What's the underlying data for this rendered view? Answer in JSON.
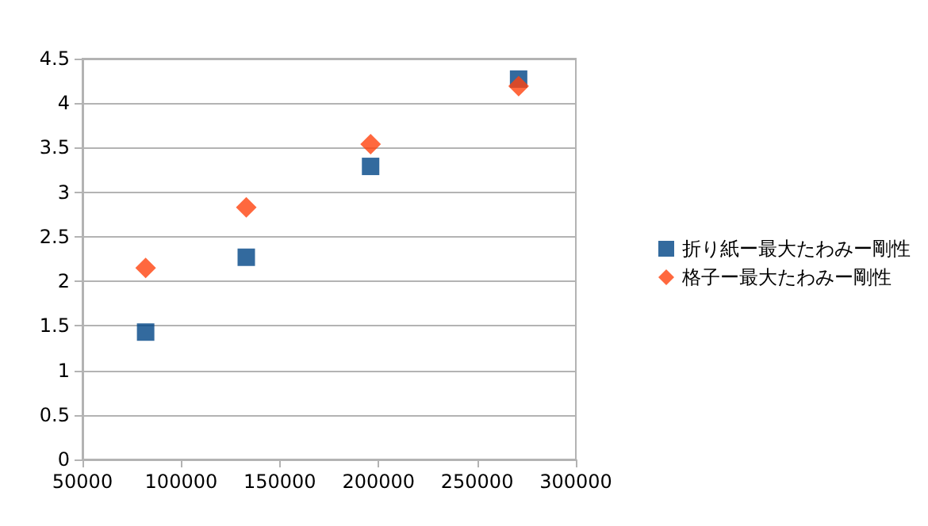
{
  "chart_data": {
    "type": "scatter",
    "x": [
      82000,
      133000,
      196000,
      271000
    ],
    "series": [
      {
        "name": "折り紙ー最大たわみー剛性",
        "color": "#004586",
        "marker": "square",
        "values": [
          1.43,
          2.27,
          3.29,
          4.27
        ]
      },
      {
        "name": "格子ー最大たわみー剛性",
        "color": "#ff420e",
        "marker": "diamond",
        "values": [
          2.15,
          2.83,
          3.54,
          4.19
        ]
      }
    ],
    "xlim": [
      50000,
      300000
    ],
    "xticks": [
      50000,
      100000,
      150000,
      200000,
      250000,
      300000
    ],
    "ylim": [
      0,
      4.5
    ],
    "yticks": [
      0,
      0.5,
      1,
      1.5,
      2,
      2.5,
      3,
      3.5,
      4,
      4.5
    ],
    "grid": "y",
    "legend": "right"
  }
}
